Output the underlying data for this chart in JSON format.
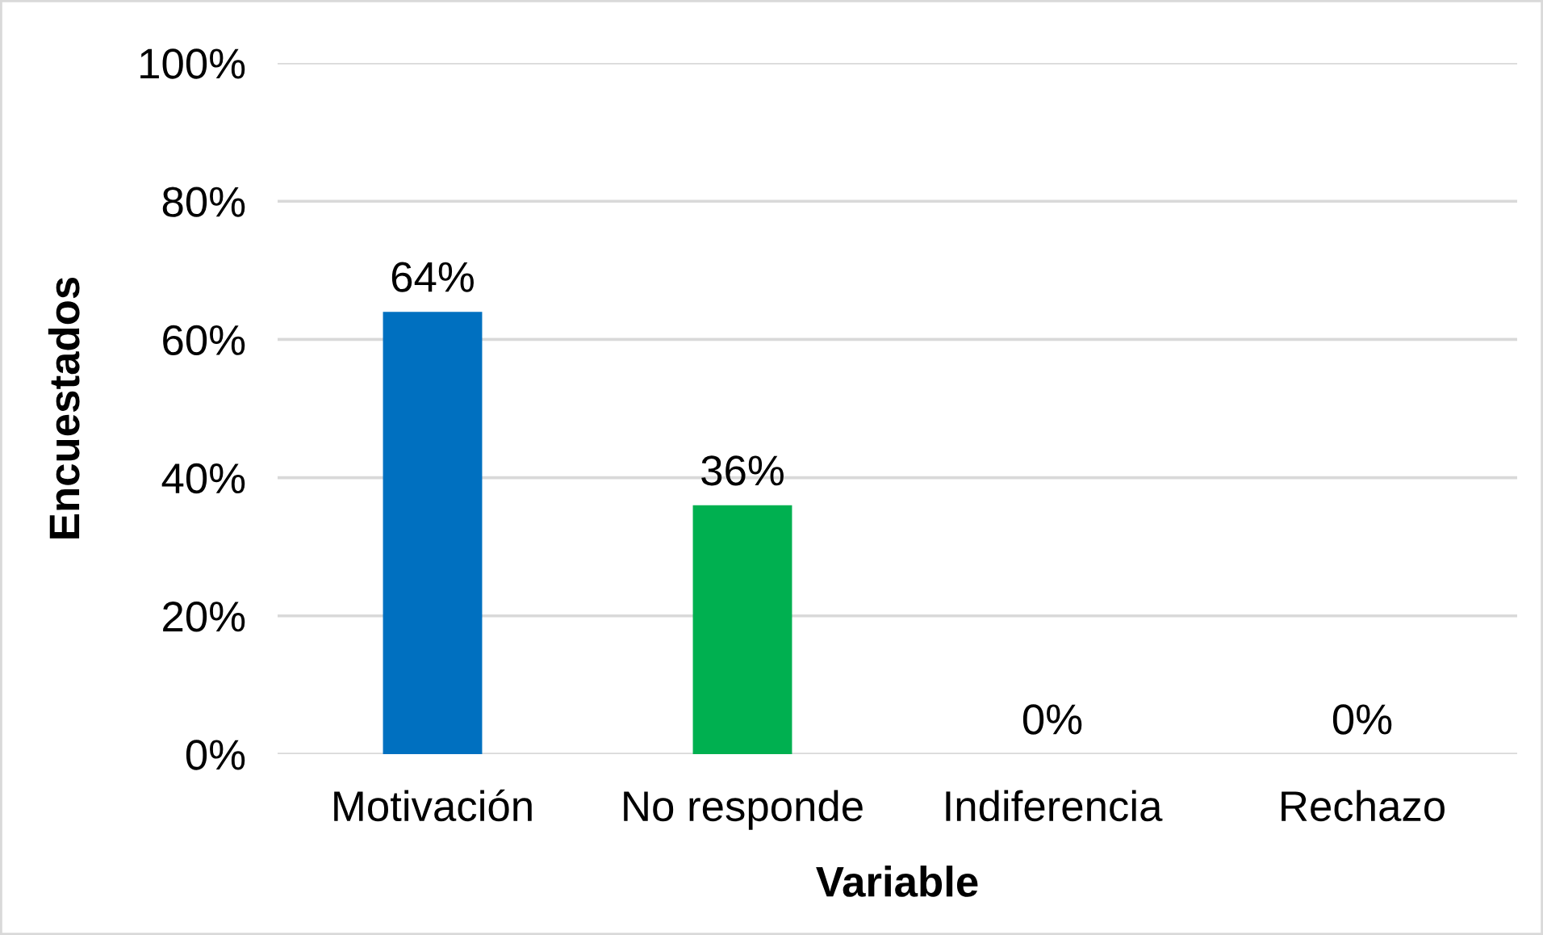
{
  "chart_data": {
    "type": "bar",
    "xlabel": "Variable",
    "ylabel": "Encuestados",
    "categories": [
      "Motivación",
      "No responde",
      "Indiferencia",
      "Rechazo"
    ],
    "values": [
      64,
      36,
      0,
      0
    ],
    "colors": [
      "#0070c0",
      "#00b050",
      null,
      null
    ],
    "value_labels": [
      "64%",
      "36%",
      "0%",
      "0%"
    ],
    "ylim": [
      0,
      100
    ],
    "yticks": [
      {
        "value": 0,
        "label": "0%"
      },
      {
        "value": 20,
        "label": "20%"
      },
      {
        "value": 40,
        "label": "40%"
      },
      {
        "value": 60,
        "label": "60%"
      },
      {
        "value": 80,
        "label": "80%"
      },
      {
        "value": 100,
        "label": "100%"
      }
    ],
    "grid": "y"
  }
}
